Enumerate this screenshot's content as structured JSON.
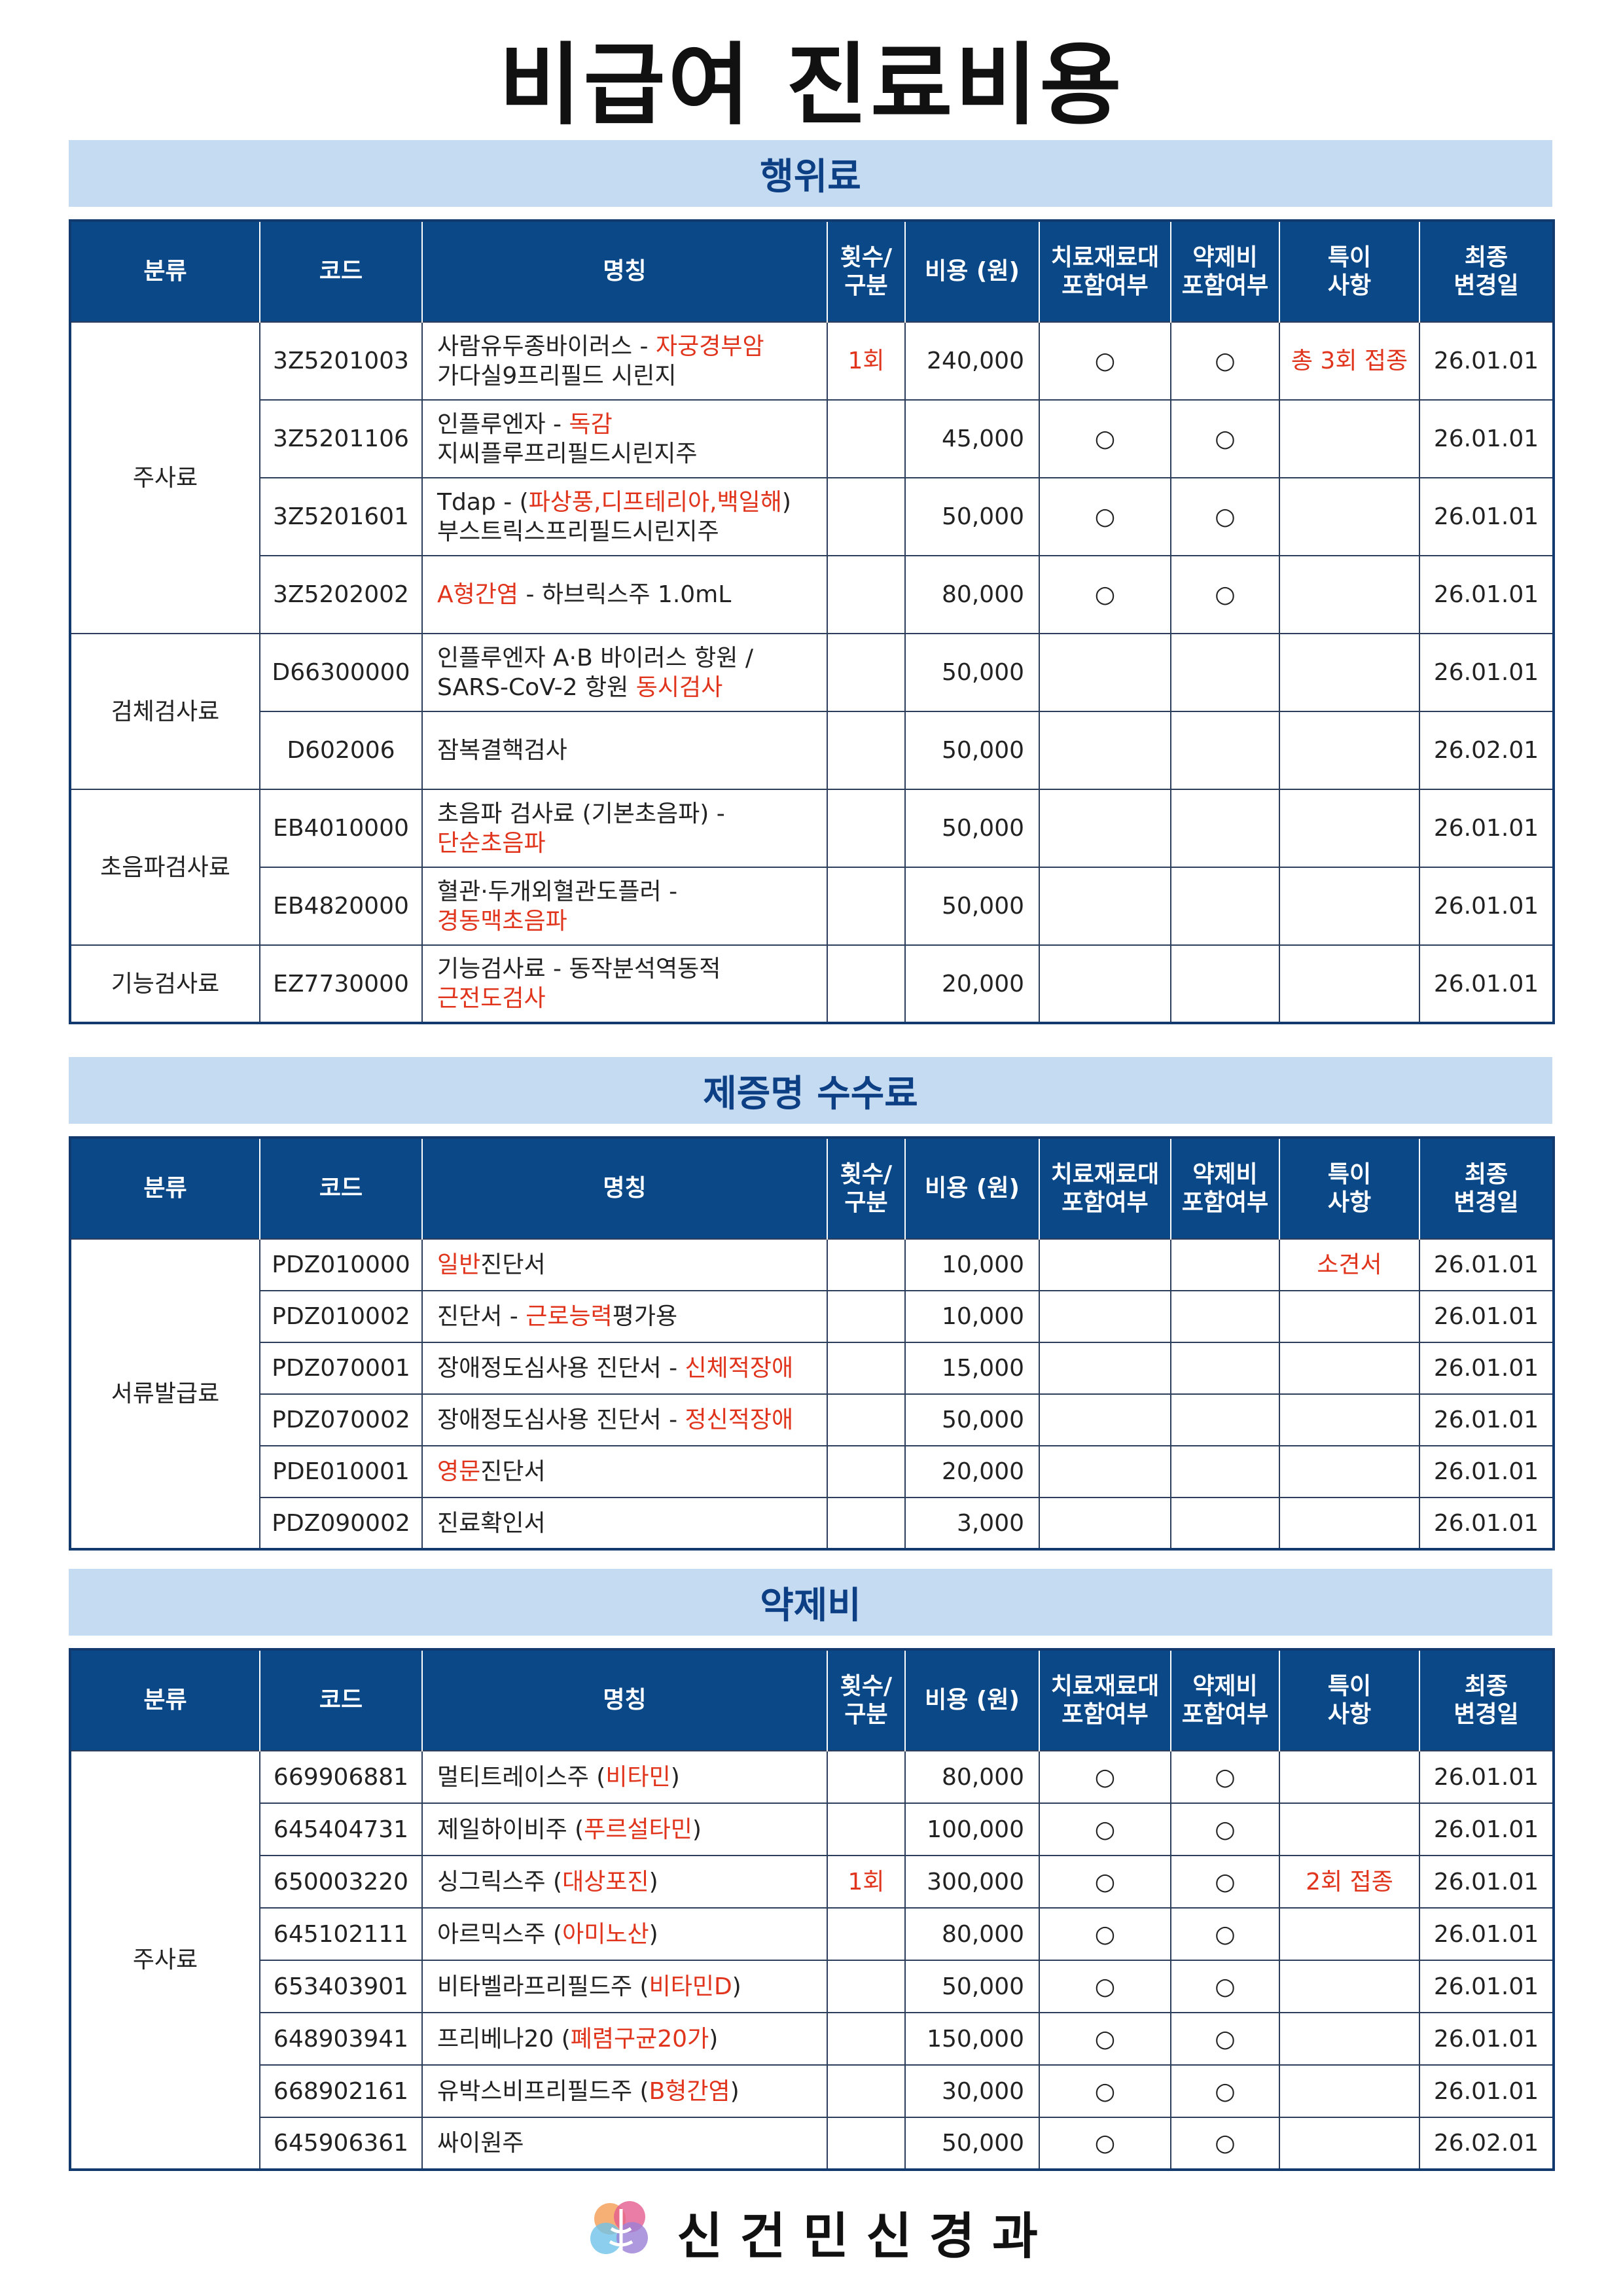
{
  "title": "비급여 진료비용",
  "columns": [
    [
      "분류"
    ],
    [
      "코드"
    ],
    [
      "명칭"
    ],
    [
      "횟수/",
      "구분"
    ],
    [
      "비용 (원)"
    ],
    [
      "치료재료대",
      "포함여부"
    ],
    [
      "약제비",
      "포함여부"
    ],
    [
      "특이",
      "사항"
    ],
    [
      "최종",
      "변경일"
    ]
  ],
  "tables": [
    {
      "title": "행위료",
      "groups": [
        {
          "category": "주사료",
          "rows": [
            {
              "code": "3Z5201003",
              "name": [
                [
                  {
                    "text": "사람유두종바이러스 - "
                  },
                  {
                    "text": "자궁경부암",
                    "color": "#e0341c"
                  }
                ],
                [
                  {
                    "text": "가다실9프리필드 시린지"
                  }
                ]
              ],
              "count": {
                "text": "1회",
                "color": "#e0341c"
              },
              "cost": "240,000",
              "material": "○",
              "drug": "○",
              "note": {
                "text": "총 3회 접종",
                "color": "#e0341c"
              },
              "date": "26.01.01"
            },
            {
              "code": "3Z5201106",
              "name": [
                [
                  {
                    "text": "인플루엔자 - "
                  },
                  {
                    "text": "독감",
                    "color": "#e0341c"
                  }
                ],
                [
                  {
                    "text": "지씨플루프리필드시린지주"
                  }
                ]
              ],
              "cost": "45,000",
              "material": "○",
              "drug": "○",
              "date": "26.01.01"
            },
            {
              "code": "3Z5201601",
              "name": [
                [
                  {
                    "text": "Tdap - ("
                  },
                  {
                    "text": "파상풍,디프테리아,백일해",
                    "color": "#e0341c"
                  },
                  {
                    "text": ")"
                  }
                ],
                [
                  {
                    "text": "부스트릭스프리필드시린지주"
                  }
                ]
              ],
              "cost": "50,000",
              "material": "○",
              "drug": "○",
              "date": "26.01.01"
            },
            {
              "code": "3Z5202002",
              "name": [
                [
                  {
                    "text": "A형간염",
                    "color": "#e0341c"
                  },
                  {
                    "text": " - 하브릭스주 1.0mL"
                  }
                ]
              ],
              "cost": "80,000",
              "material": "○",
              "drug": "○",
              "date": "26.01.01"
            }
          ]
        },
        {
          "category": "검체검사료",
          "rows": [
            {
              "code": "D66300000",
              "name": [
                [
                  {
                    "text": "인플루엔자 A·B 바이러스 항원 /"
                  }
                ],
                [
                  {
                    "text": "SARS-CoV-2 항원 "
                  },
                  {
                    "text": "동시검사",
                    "color": "#e0341c"
                  }
                ]
              ],
              "cost": "50,000",
              "date": "26.01.01"
            },
            {
              "code": "D602006",
              "name": [
                [
                  {
                    "text": "잠복결핵검사"
                  }
                ]
              ],
              "cost": "50,000",
              "date": "26.02.01"
            }
          ]
        },
        {
          "category": "초음파검사료",
          "rows": [
            {
              "code": "EB4010000",
              "name": [
                [
                  {
                    "text": "초음파 검사료 (기본초음파) -"
                  }
                ],
                [
                  {
                    "text": "단순초음파",
                    "color": "#e0341c"
                  }
                ]
              ],
              "cost": "50,000",
              "date": "26.01.01"
            },
            {
              "code": "EB4820000",
              "name": [
                [
                  {
                    "text": "혈관·두개외혈관도플러 -"
                  }
                ],
                [
                  {
                    "text": "경동맥초음파",
                    "color": "#e0341c"
                  }
                ]
              ],
              "cost": "50,000",
              "date": "26.01.01"
            }
          ]
        },
        {
          "category": "기능검사료",
          "rows": [
            {
              "code": "EZ7730000",
              "name": [
                [
                  {
                    "text": "기능검사료 - 동작분석역동적"
                  }
                ],
                [
                  {
                    "text": "근전도검사",
                    "color": "#e0341c"
                  }
                ]
              ],
              "cost": "20,000",
              "date": "26.01.01"
            }
          ]
        }
      ]
    },
    {
      "title": "제증명 수수료",
      "groups": [
        {
          "category": "서류발급료",
          "rows": [
            {
              "code": "PDZ010000",
              "name": [
                [
                  {
                    "text": "일반",
                    "color": "#e0341c"
                  },
                  {
                    "text": "진단서"
                  }
                ]
              ],
              "cost": "10,000",
              "note": {
                "text": "소견서",
                "color": "#e0341c"
              },
              "date": "26.01.01"
            },
            {
              "code": "PDZ010002",
              "name": [
                [
                  {
                    "text": "진단서 - "
                  },
                  {
                    "text": "근로능력",
                    "color": "#e0341c"
                  },
                  {
                    "text": "평가용"
                  }
                ]
              ],
              "cost": "10,000",
              "date": "26.01.01"
            },
            {
              "code": "PDZ070001",
              "name": [
                [
                  {
                    "text": "장애정도심사용 진단서 - "
                  },
                  {
                    "text": "신체적장애",
                    "color": "#e0341c"
                  }
                ]
              ],
              "cost": "15,000",
              "date": "26.01.01"
            },
            {
              "code": "PDZ070002",
              "name": [
                [
                  {
                    "text": "장애정도심사용 진단서 - "
                  },
                  {
                    "text": "정신적장애",
                    "color": "#e0341c"
                  }
                ]
              ],
              "cost": "50,000",
              "date": "26.01.01"
            },
            {
              "code": "PDE010001",
              "name": [
                [
                  {
                    "text": "영문",
                    "color": "#e0341c"
                  },
                  {
                    "text": "진단서"
                  }
                ]
              ],
              "cost": "20,000",
              "date": "26.01.01"
            },
            {
              "code": "PDZ090002",
              "name": [
                [
                  {
                    "text": "진료확인서"
                  }
                ]
              ],
              "cost": "3,000",
              "date": "26.01.01"
            }
          ]
        }
      ]
    },
    {
      "title": "약제비",
      "groups": [
        {
          "category": "주사료",
          "rows": [
            {
              "code": "669906881",
              "name": [
                [
                  {
                    "text": "멀티트레이스주 ("
                  },
                  {
                    "text": "비타민",
                    "color": "#e0341c"
                  },
                  {
                    "text": ")"
                  }
                ]
              ],
              "cost": "80,000",
              "material": "○",
              "drug": "○",
              "date": "26.01.01"
            },
            {
              "code": "645404731",
              "name": [
                [
                  {
                    "text": "제일하이비주 ("
                  },
                  {
                    "text": "푸르설타민",
                    "color": "#e0341c"
                  },
                  {
                    "text": ")"
                  }
                ]
              ],
              "cost": "100,000",
              "material": "○",
              "drug": "○",
              "date": "26.01.01"
            },
            {
              "code": "650003220",
              "name": [
                [
                  {
                    "text": "싱그릭스주 ("
                  },
                  {
                    "text": "대상포진",
                    "color": "#e0341c"
                  },
                  {
                    "text": ")"
                  }
                ]
              ],
              "count": {
                "text": "1회",
                "color": "#e0341c"
              },
              "cost": "300,000",
              "material": "○",
              "drug": "○",
              "note": {
                "text": "2회 접종",
                "color": "#e0341c"
              },
              "date": "26.01.01"
            },
            {
              "code": "645102111",
              "name": [
                [
                  {
                    "text": "아르믹스주 ("
                  },
                  {
                    "text": "아미노산",
                    "color": "#e0341c"
                  },
                  {
                    "text": ")"
                  }
                ]
              ],
              "cost": "80,000",
              "material": "○",
              "drug": "○",
              "date": "26.01.01"
            },
            {
              "code": "653403901",
              "name": [
                [
                  {
                    "text": "비타벨라프리필드주 ("
                  },
                  {
                    "text": "비타민D",
                    "color": "#e0341c"
                  },
                  {
                    "text": ")"
                  }
                ]
              ],
              "cost": "50,000",
              "material": "○",
              "drug": "○",
              "date": "26.01.01"
            },
            {
              "code": "648903941",
              "name": [
                [
                  {
                    "text": "프리베나20 ("
                  },
                  {
                    "text": "폐렴구균20가",
                    "color": "#e0341c"
                  },
                  {
                    "text": ")"
                  }
                ]
              ],
              "cost": "150,000",
              "material": "○",
              "drug": "○",
              "date": "26.01.01"
            },
            {
              "code": "668902161",
              "name": [
                [
                  {
                    "text": "유박스비프리필드주 ("
                  },
                  {
                    "text": "B형간염",
                    "color": "#e0341c"
                  },
                  {
                    "text": ")"
                  }
                ]
              ],
              "cost": "30,000",
              "material": "○",
              "drug": "○",
              "date": "26.01.01"
            },
            {
              "code": "645906361",
              "name": [
                [
                  {
                    "text": "싸이원주"
                  }
                ]
              ],
              "cost": "50,000",
              "material": "○",
              "drug": "○",
              "date": "26.02.01"
            }
          ]
        }
      ]
    }
  ],
  "footer": "신 건 민 신 경 과"
}
